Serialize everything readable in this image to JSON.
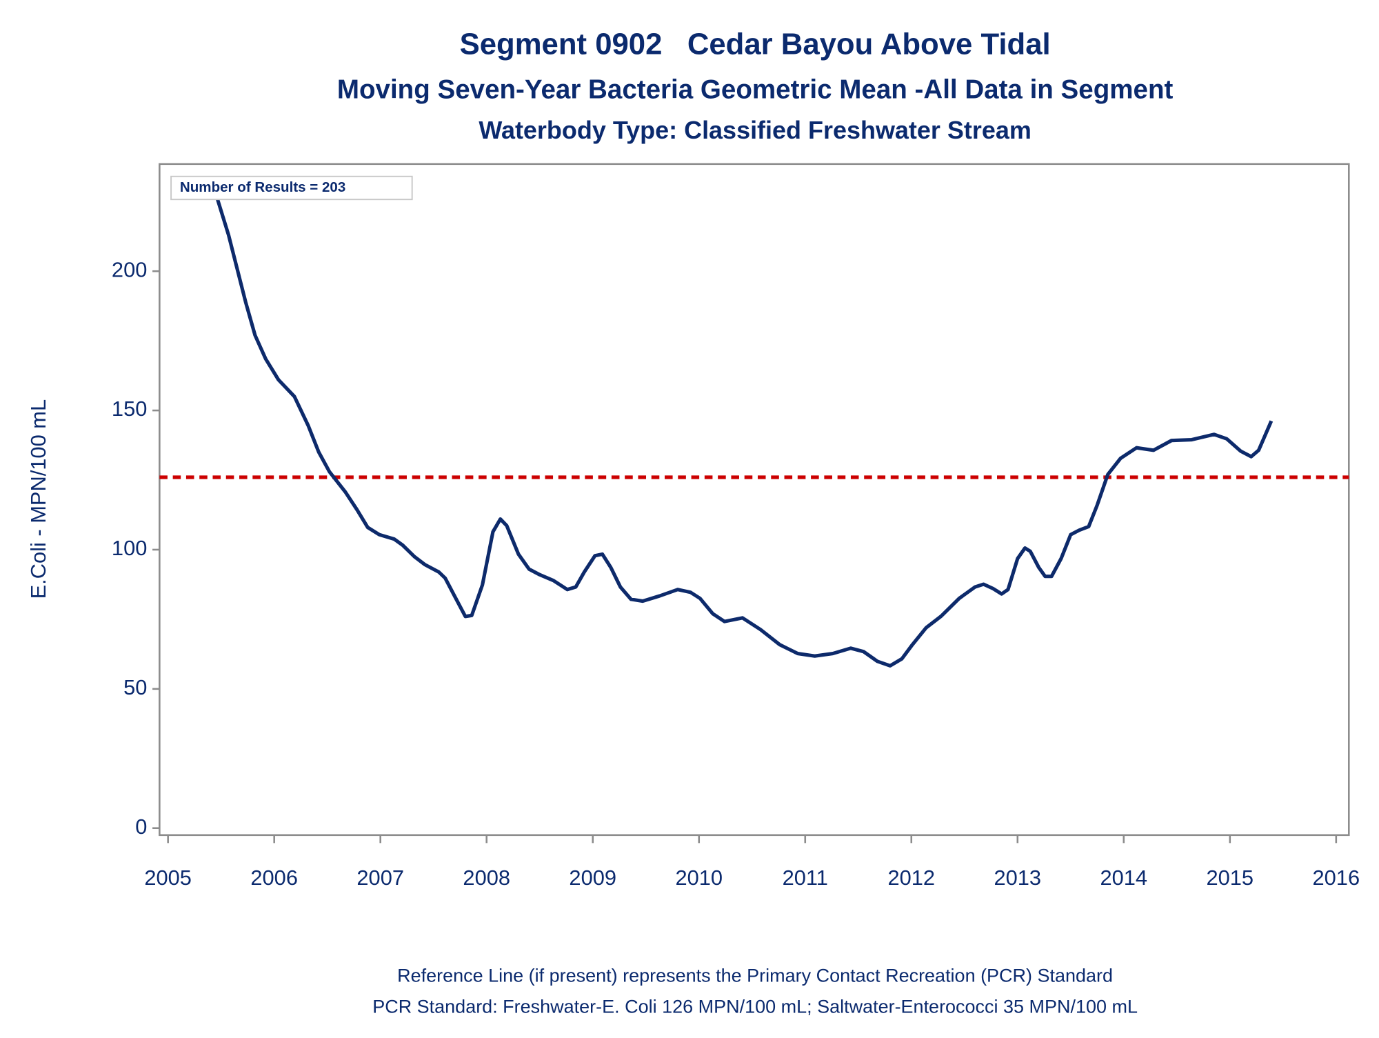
{
  "chart_data": {
    "type": "line",
    "title": "Segment 0902   Cedar Bayou Above Tidal",
    "subtitle": "Moving Seven-Year Bacteria Geometric Mean -All Data in Segment",
    "subtitle2": "Waterbody Type: Classified Freshwater Stream",
    "y_label": "E.Coli - MPN/100 mL",
    "annotation": "Number of Results = 203",
    "footnotes": [
      "Reference Line (if present) represents the Primary Contact Recreation (PCR) Standard",
      "PCR Standard: Freshwater-E. Coli 126 MPN/100 mL; Saltwater-Enterococci 35 MPN/100 mL"
    ],
    "reference_line": {
      "value": 126,
      "color": "#cc0000"
    },
    "color": "#0d2a6b",
    "xlim": [
      2004.92,
      2016.12
    ],
    "xticks": [
      2005,
      2006,
      2007,
      2008,
      2009,
      2010,
      2011,
      2012,
      2013,
      2014,
      2015,
      2016
    ],
    "ylim": [
      -2.5,
      238.5
    ],
    "yticks": [
      0,
      50,
      100,
      150,
      200
    ],
    "x": [
      2005.4,
      2005.57,
      2005.73,
      2005.82,
      2005.92,
      2006.04,
      2006.19,
      2006.32,
      2006.42,
      2006.52,
      2006.67,
      2006.78,
      2006.88,
      2006.99,
      2007.13,
      2007.21,
      2007.32,
      2007.42,
      2007.55,
      2007.61,
      2007.71,
      2007.8,
      2007.86,
      2007.96,
      2008.06,
      2008.13,
      2008.19,
      2008.3,
      2008.4,
      2008.5,
      2008.63,
      2008.76,
      2008.84,
      2008.92,
      2009.02,
      2009.09,
      2009.17,
      2009.26,
      2009.36,
      2009.47,
      2009.63,
      2009.8,
      2009.92,
      2010.01,
      2010.13,
      2010.24,
      2010.41,
      2010.58,
      2010.76,
      2010.93,
      2011.09,
      2011.26,
      2011.43,
      2011.55,
      2011.68,
      2011.8,
      2011.91,
      2012.01,
      2012.14,
      2012.28,
      2012.45,
      2012.6,
      2012.68,
      2012.77,
      2012.85,
      2012.91,
      2013.0,
      2013.07,
      2013.12,
      2013.2,
      2013.26,
      2013.32,
      2013.41,
      2013.5,
      2013.58,
      2013.67,
      2013.75,
      2013.85,
      2013.97,
      2014.12,
      2014.28,
      2014.45,
      2014.64,
      2014.85,
      2014.97,
      2015.1,
      2015.2,
      2015.27,
      2015.39
    ],
    "values": [
      234,
      213,
      189,
      177,
      168.5,
      161,
      155,
      144.6,
      135,
      128,
      120.7,
      114.3,
      108,
      105.4,
      103.8,
      101.6,
      97.5,
      94.6,
      92,
      89.8,
      82.5,
      76,
      76.4,
      87.3,
      106.4,
      111,
      108.6,
      98.4,
      93,
      91,
      88.9,
      85.7,
      86.6,
      92,
      97.8,
      98.4,
      93.6,
      86.6,
      82.2,
      81.5,
      83.4,
      85.7,
      84.7,
      82.5,
      77,
      74.2,
      75.5,
      71.3,
      65.9,
      62.7,
      61.8,
      62.7,
      64.6,
      63.4,
      59.9,
      58.3,
      60.8,
      65.9,
      72,
      76.1,
      82.5,
      86.6,
      87.6,
      86,
      84.1,
      85.7,
      96.8,
      100.6,
      99.4,
      93.6,
      90.4,
      90.4,
      96.8,
      105.4,
      107,
      108.3,
      116,
      127,
      132.8,
      136.6,
      135.7,
      139.2,
      139.5,
      141.4,
      139.8,
      135.4,
      133.4,
      135.7,
      146.2
    ]
  }
}
